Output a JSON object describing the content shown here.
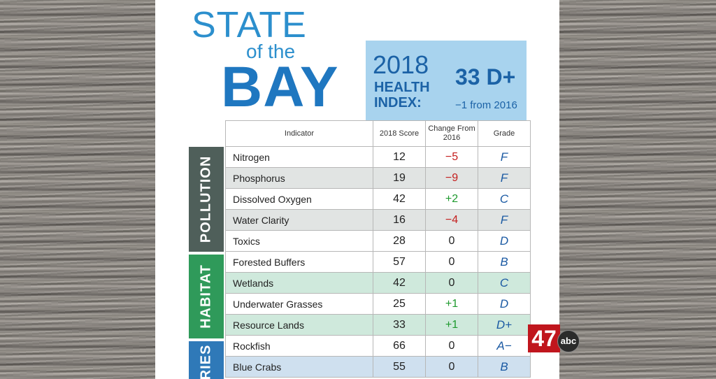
{
  "header": {
    "state": "STATE",
    "of_the": "of the",
    "bay": "BAY"
  },
  "health_index": {
    "year": "2018",
    "label": "HEALTH INDEX:",
    "score": "33 D+",
    "change": "−1 from 2016"
  },
  "table": {
    "headers": {
      "indicator": "Indicator",
      "score": "2018 Score",
      "change": "Change From 2016",
      "grade": "Grade"
    },
    "categories": {
      "pollution": "POLLUTION",
      "habitat": "HABITAT",
      "fisheries": "RIES"
    },
    "rows": [
      {
        "indicator": "Nitrogen",
        "score": "12",
        "change": "−5",
        "grade": "F"
      },
      {
        "indicator": "Phosphorus",
        "score": "19",
        "change": "−9",
        "grade": "F"
      },
      {
        "indicator": "Dissolved Oxygen",
        "score": "42",
        "change": "+2",
        "grade": "C"
      },
      {
        "indicator": "Water Clarity",
        "score": "16",
        "change": "−4",
        "grade": "F"
      },
      {
        "indicator": "Toxics",
        "score": "28",
        "change": "0",
        "grade": "D"
      },
      {
        "indicator": "Forested Buffers",
        "score": "57",
        "change": "0",
        "grade": "B"
      },
      {
        "indicator": "Wetlands",
        "score": "42",
        "change": "0",
        "grade": "C"
      },
      {
        "indicator": "Underwater Grasses",
        "score": "25",
        "change": "+1",
        "grade": "D"
      },
      {
        "indicator": "Resource Lands",
        "score": "33",
        "change": "+1",
        "grade": "D+"
      },
      {
        "indicator": "Rockfish",
        "score": "66",
        "change": "0",
        "grade": "A−"
      },
      {
        "indicator": "Blue Crabs",
        "score": "55",
        "change": "0",
        "grade": "B"
      }
    ]
  },
  "station_logo": {
    "number": "47",
    "network": "abc"
  }
}
